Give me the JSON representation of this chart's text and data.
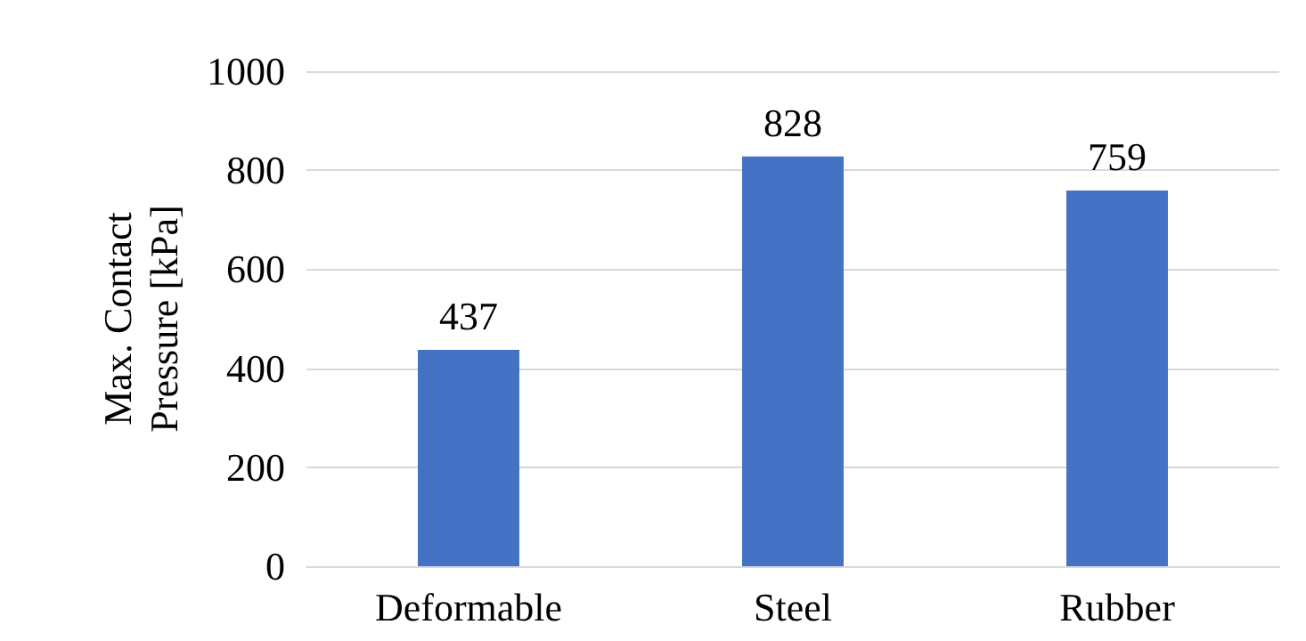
{
  "chart_data": {
    "type": "bar",
    "ylabel": "Max. Contact\nPressure [kPa]",
    "categories": [
      "Deformable",
      "Steel",
      "Rubber"
    ],
    "values": [
      437,
      828,
      759
    ],
    "color": "#4472c4",
    "ylim": [
      0,
      1000
    ],
    "yticks": [
      0,
      200,
      400,
      600,
      800,
      1000
    ],
    "grid": "y",
    "data_labels": true
  }
}
